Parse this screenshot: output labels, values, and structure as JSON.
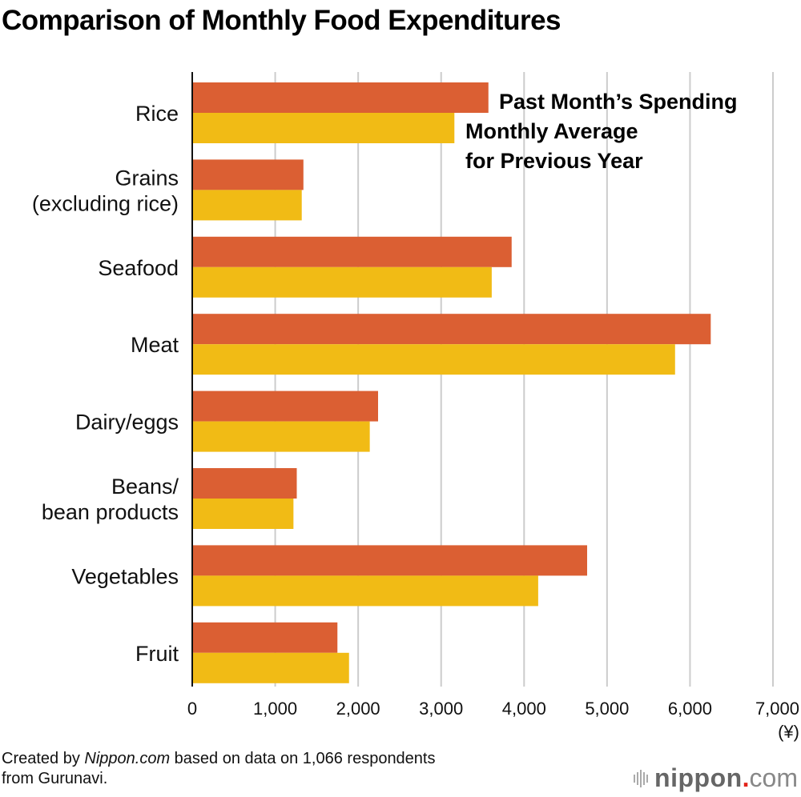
{
  "chart_data": {
    "type": "bar",
    "orientation": "horizontal",
    "title": "Comparison of Monthly Food Expenditures",
    "categories": [
      [
        "Rice"
      ],
      [
        "Grains",
        "(excluding rice)"
      ],
      [
        "Seafood"
      ],
      [
        "Meat"
      ],
      [
        "Dairy/eggs"
      ],
      [
        "Beans/",
        "bean products"
      ],
      [
        "Vegetables"
      ],
      [
        "Fruit"
      ]
    ],
    "series": [
      {
        "name": "Past Month’s Spending",
        "color": "#db5f33",
        "values": [
          3570,
          1340,
          3850,
          6250,
          2240,
          1260,
          4760,
          1750
        ]
      },
      {
        "name": "Monthly Average for Previous Year",
        "color": "#f1bb15",
        "values": [
          3160,
          1320,
          3610,
          5820,
          2140,
          1220,
          4170,
          1890
        ]
      }
    ],
    "xlim": [
      0,
      7000
    ],
    "xticks": [
      0,
      1000,
      2000,
      3000,
      4000,
      5000,
      6000,
      7000
    ],
    "xtick_labels": [
      "0",
      "1,000",
      "2,000",
      "3,000",
      "4,000",
      "5,000",
      "6,000",
      "7,000"
    ],
    "xlabel": "(¥)",
    "ylabel": "",
    "grid": "vertical",
    "legend": [
      {
        "lines": [
          "Past Month’s Spending"
        ]
      },
      {
        "lines": [
          "Monthly Average",
          "for Previous Year"
        ]
      }
    ],
    "legend_position": "top-right"
  },
  "footer": {
    "prefix": "Created by ",
    "source_italic": "Nippon.com",
    "suffix": " based on data on 1,066 respondents",
    "line2": "from Gurunavi."
  },
  "logo": {
    "brand": "nippon",
    "dot": ".",
    "tld": "com"
  }
}
